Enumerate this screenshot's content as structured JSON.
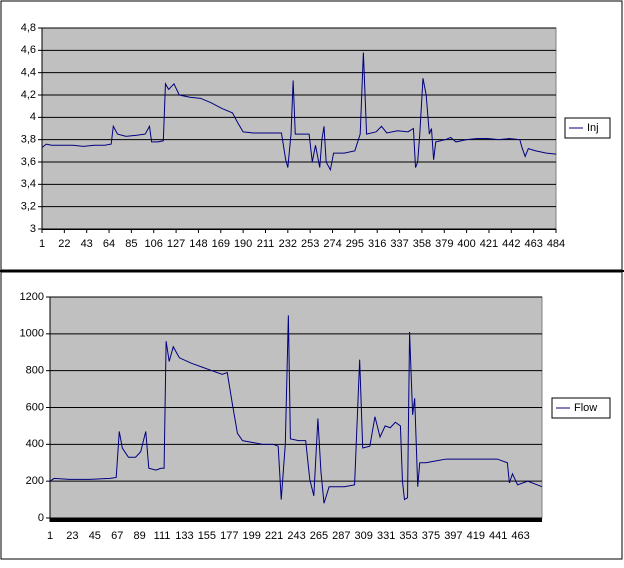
{
  "chart_data": [
    {
      "type": "line",
      "legend": "right",
      "grid": true,
      "plot_background": "#c0c0c0",
      "xlim": [
        1,
        484
      ],
      "xticks": [
        1,
        22,
        43,
        64,
        85,
        106,
        127,
        148,
        169,
        190,
        211,
        232,
        253,
        274,
        295,
        316,
        337,
        358,
        379,
        400,
        421,
        442,
        463,
        484
      ],
      "ylim": [
        3,
        4.8
      ],
      "yticks": [
        3,
        {
          "value": 3.2,
          "label": "3,2"
        },
        {
          "value": 3.4,
          "label": "3,4"
        },
        {
          "value": 3.6,
          "label": "3,6"
        },
        {
          "value": 3.8,
          "label": "3,8"
        },
        4,
        {
          "value": 4.2,
          "label": "4,2"
        },
        {
          "value": 4.4,
          "label": "4,4"
        },
        {
          "value": 4.6,
          "label": "4,6"
        },
        {
          "value": 4.8,
          "label": "4,8"
        }
      ],
      "x": [
        1,
        5,
        10,
        20,
        30,
        40,
        50,
        60,
        66,
        68,
        72,
        80,
        90,
        98,
        102,
        104,
        110,
        115,
        117,
        120,
        125,
        130,
        140,
        150,
        160,
        170,
        180,
        185,
        190,
        200,
        210,
        220,
        226,
        230,
        232,
        235,
        237,
        239,
        245,
        252,
        255,
        258,
        262,
        264,
        266,
        268,
        272,
        275,
        285,
        295,
        300,
        303,
        306,
        315,
        320,
        325,
        335,
        345,
        350,
        352,
        354,
        356,
        359,
        362,
        365,
        367,
        369,
        371,
        380,
        385,
        390,
        400,
        410,
        420,
        430,
        440,
        450,
        452,
        455,
        458,
        465,
        475,
        484
      ],
      "series": [
        {
          "name": "Inj",
          "color": "#000080",
          "values": [
            3.73,
            3.76,
            3.75,
            3.75,
            3.75,
            3.74,
            3.75,
            3.75,
            3.76,
            3.92,
            3.85,
            3.83,
            3.84,
            3.85,
            3.92,
            3.78,
            3.78,
            3.79,
            4.3,
            4.25,
            4.3,
            4.2,
            4.18,
            4.17,
            4.13,
            4.08,
            4.04,
            3.95,
            3.87,
            3.86,
            3.86,
            3.86,
            3.86,
            3.62,
            3.55,
            3.85,
            4.33,
            3.85,
            3.85,
            3.85,
            3.6,
            3.75,
            3.55,
            3.8,
            3.92,
            3.6,
            3.53,
            3.68,
            3.68,
            3.7,
            3.85,
            4.58,
            3.85,
            3.87,
            3.92,
            3.86,
            3.88,
            3.87,
            3.9,
            3.55,
            3.6,
            3.85,
            4.35,
            4.2,
            3.85,
            3.9,
            3.62,
            3.78,
            3.8,
            3.82,
            3.78,
            3.8,
            3.81,
            3.81,
            3.8,
            3.81,
            3.8,
            3.73,
            3.65,
            3.72,
            3.7,
            3.68,
            3.67
          ]
        }
      ]
    },
    {
      "type": "line",
      "legend": "right",
      "grid": true,
      "plot_background": "#c0c0c0",
      "xlim": [
        1,
        484
      ],
      "xticks": [
        1,
        23,
        45,
        67,
        89,
        111,
        133,
        155,
        177,
        199,
        221,
        243,
        265,
        287,
        309,
        331,
        353,
        375,
        397,
        419,
        441,
        463
      ],
      "ylim": [
        0,
        1200
      ],
      "yticks": [
        0,
        200,
        400,
        600,
        800,
        1000,
        1200
      ],
      "x": [
        1,
        5,
        20,
        40,
        60,
        66,
        69,
        72,
        78,
        85,
        90,
        95,
        98,
        105,
        110,
        113,
        115,
        118,
        122,
        128,
        140,
        150,
        160,
        170,
        175,
        180,
        185,
        190,
        200,
        210,
        220,
        225,
        228,
        232,
        235,
        237,
        245,
        252,
        256,
        260,
        264,
        267,
        270,
        275,
        290,
        300,
        305,
        308,
        315,
        320,
        325,
        330,
        335,
        340,
        345,
        347,
        349,
        352,
        354,
        357,
        359,
        362,
        364,
        370,
        380,
        390,
        400,
        420,
        440,
        450,
        452,
        455,
        460,
        470,
        484
      ],
      "series": [
        {
          "name": "Flow",
          "color": "#000080",
          "values": [
            200,
            215,
            210,
            210,
            215,
            220,
            470,
            380,
            330,
            330,
            360,
            470,
            270,
            260,
            270,
            270,
            960,
            850,
            930,
            870,
            840,
            820,
            800,
            780,
            790,
            620,
            460,
            420,
            410,
            400,
            400,
            390,
            100,
            400,
            1100,
            430,
            420,
            420,
            210,
            120,
            540,
            250,
            80,
            170,
            170,
            180,
            860,
            380,
            390,
            550,
            440,
            500,
            490,
            520,
            500,
            200,
            100,
            110,
            1010,
            560,
            650,
            170,
            300,
            300,
            310,
            320,
            320,
            320,
            320,
            300,
            190,
            240,
            180,
            200,
            170
          ]
        }
      ]
    }
  ]
}
